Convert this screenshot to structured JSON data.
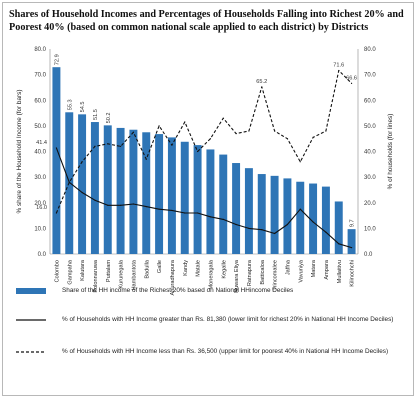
{
  "title": "Shares of Household Incomes and Percentages of Households Falling into Richest 20% and Poorest 40% (based on common national scale applied to each district) by Districts",
  "chart_data": {
    "type": "bar",
    "categories": [
      "Colombo",
      "Gampaha",
      "Kalutara",
      "Polonnaruwa",
      "Puttalam",
      "Kurunegala",
      "Hambantota",
      "Badulla",
      "Galle",
      "Anuradhapura",
      "Kandy",
      "Matale",
      "Moneragala",
      "Kegalle",
      "Nuwara Eliya",
      "Ratnapura",
      "Batticaloa",
      "Trincomalee",
      "Jaffna",
      "Vavuniya",
      "Matara",
      "Ampara",
      "Mullaitivu",
      "Kilinochchi"
    ],
    "series": [
      {
        "name": "Share of the HH income of the Richest 20% based on National HHincome Deciles",
        "kind": "bar",
        "axis": "left",
        "values": [
          72.9,
          55.3,
          54.5,
          51.5,
          50.2,
          49.2,
          48.5,
          47.5,
          46.8,
          45.5,
          43.8,
          42.5,
          40.8,
          38.8,
          35.5,
          33.5,
          31.2,
          30.5,
          29.5,
          28.2,
          27.5,
          26.3,
          20.5,
          9.7
        ],
        "labels": [
          "72.9",
          "55.3",
          "54.5",
          "51.5",
          "50.2",
          "",
          "",
          "",
          "",
          "",
          "",
          "",
          "",
          "",
          "",
          "",
          "",
          "",
          "",
          "",
          "",
          "",
          "",
          "9.7"
        ]
      },
      {
        "name": "% of Households with HH Income greater than Rs. 81,380 (lower limit for richest 20% in National HH Income Deciles)",
        "kind": "line",
        "style": "solid",
        "axis": "right",
        "values": [
          41.4,
          28.0,
          24.0,
          21.0,
          19.0,
          19.0,
          19.5,
          18.5,
          17.5,
          17.0,
          16.0,
          16.0,
          14.5,
          13.5,
          11.5,
          10.0,
          9.5,
          8.0,
          11.5,
          17.5,
          12.5,
          8.5,
          4.0,
          2.5
        ],
        "labels": [
          "41.4",
          "",
          "",
          "",
          "",
          "",
          "",
          "",
          "",
          "",
          "",
          "",
          "",
          "",
          "",
          "",
          "",
          "",
          "",
          "",
          "",
          "",
          "",
          ""
        ]
      },
      {
        "name": "% of Households with HH Income less than Rs. 36,500 (upper limit for poorest 40% in National HH Income Deciles)",
        "kind": "line",
        "style": "dashed",
        "axis": "right",
        "values": [
          16.0,
          28.0,
          36.0,
          42.0,
          43.0,
          42.0,
          47.5,
          37.0,
          50.0,
          42.5,
          51.5,
          40.0,
          45.0,
          53.0,
          47.0,
          48.0,
          65.2,
          48.0,
          45.0,
          36.0,
          45.5,
          48.0,
          71.6,
          66.6
        ],
        "labels": [
          "16.0",
          "",
          "",
          "",
          "",
          "",
          "",
          "",
          "",
          "",
          "",
          "",
          "",
          "",
          "",
          "",
          "65.2",
          "",
          "",
          "",
          "",
          "",
          "71.6",
          "66.6"
        ]
      }
    ],
    "ylabel": "% share of the Household Income (for bars)",
    "y2label": "% of households (for lines)",
    "yticks": [
      "0.0",
      "10.0",
      "20.0",
      "30.0",
      "40.0",
      "50.0",
      "60.0",
      "70.0",
      "80.0"
    ],
    "y2ticks": [
      "0.0",
      "10.0",
      "20.0",
      "30.0",
      "40.0",
      "50.0",
      "60.0",
      "70.0",
      "80.0"
    ],
    "ylim": [
      0,
      80
    ],
    "y2lim": [
      0,
      80
    ],
    "grid": false,
    "legend_position": "bottom",
    "colors": {
      "bar": "#2e75b6",
      "line_solid": "#111111",
      "line_dashed": "#111111"
    }
  }
}
